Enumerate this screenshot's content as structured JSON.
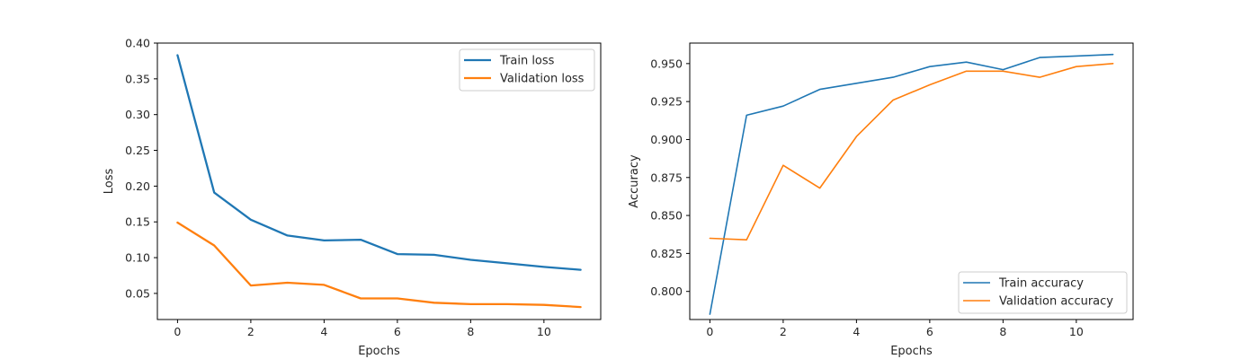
{
  "chart_data": [
    {
      "type": "line",
      "title": "",
      "xlabel": "Epochs",
      "ylabel": "Loss",
      "xlim": [
        -0.55,
        11.55
      ],
      "ylim": [
        0.0135,
        0.4
      ],
      "xticks": [
        0,
        2,
        4,
        6,
        8,
        10
      ],
      "yticks": [
        0.05,
        0.1,
        0.15,
        0.2,
        0.25,
        0.3,
        0.35,
        0.4
      ],
      "ytick_labels": [
        "0.05",
        "0.10",
        "0.15",
        "0.20",
        "0.25",
        "0.30",
        "0.35",
        "0.40"
      ],
      "legend_position": "top-right",
      "x": [
        0,
        1,
        2,
        3,
        4,
        5,
        6,
        7,
        8,
        9,
        10,
        11
      ],
      "series": [
        {
          "name": "Train loss",
          "color": "#1f77b4",
          "values": [
            0.383,
            0.191,
            0.153,
            0.131,
            0.124,
            0.125,
            0.105,
            0.104,
            0.097,
            0.092,
            0.087,
            0.083
          ]
        },
        {
          "name": "Validation loss",
          "color": "#ff7f0e",
          "values": [
            0.149,
            0.117,
            0.061,
            0.065,
            0.062,
            0.043,
            0.043,
            0.037,
            0.035,
            0.035,
            0.034,
            0.031
          ]
        }
      ]
    },
    {
      "type": "line",
      "title": "",
      "xlabel": "Epochs",
      "ylabel": "Accuracy",
      "xlim": [
        -0.55,
        11.55
      ],
      "ylim": [
        0.7815,
        0.9635
      ],
      "xticks": [
        0,
        2,
        4,
        6,
        8,
        10
      ],
      "yticks": [
        0.8,
        0.825,
        0.85,
        0.875,
        0.9,
        0.925,
        0.95
      ],
      "ytick_labels": [
        "0.800",
        "0.825",
        "0.850",
        "0.875",
        "0.900",
        "0.925",
        "0.950"
      ],
      "legend_position": "bottom-right",
      "x": [
        0,
        1,
        2,
        3,
        4,
        5,
        6,
        7,
        8,
        9,
        10,
        11
      ],
      "series": [
        {
          "name": "Train accuracy",
          "color": "#1f77b4",
          "values": [
            0.785,
            0.916,
            0.922,
            0.933,
            0.937,
            0.941,
            0.948,
            0.951,
            0.946,
            0.954,
            0.955,
            0.956
          ]
        },
        {
          "name": "Validation accuracy",
          "color": "#ff7f0e",
          "values": [
            0.835,
            0.834,
            0.883,
            0.868,
            0.902,
            0.926,
            0.936,
            0.945,
            0.945,
            0.941,
            0.948,
            0.95
          ]
        }
      ]
    }
  ]
}
